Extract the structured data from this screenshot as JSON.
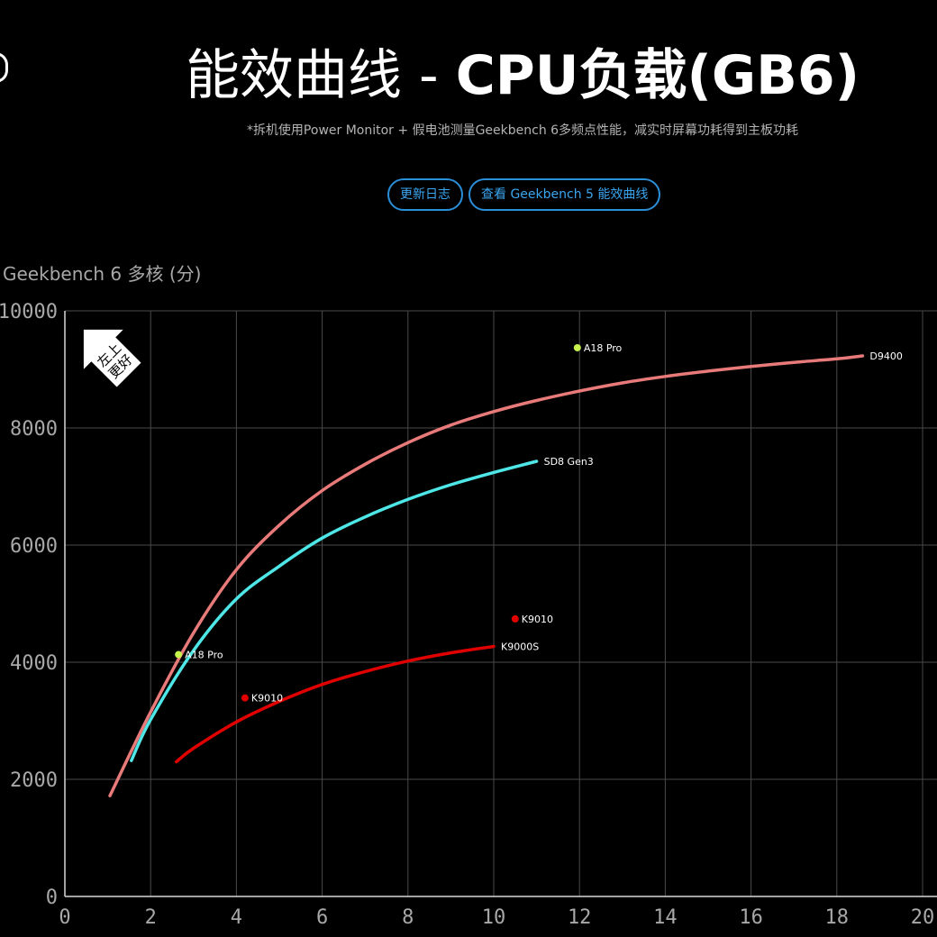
{
  "header": {
    "title_light": "能效曲线 - ",
    "title_bold": "CPU负载(GB6)",
    "subtitle": "*拆机使用Power Monitor + 假电池测量Geekbench 6多频点性能，减实时屏幕功耗得到主板功耗"
  },
  "buttons": {
    "changelog": "更新日志",
    "gb5": "查看 Geekbench 5 能效曲线"
  },
  "badge": {
    "line1": "左上",
    "line2": "更好"
  },
  "chart_data": {
    "type": "line",
    "ylabel": "Geekbench 6 多核 (分)",
    "xlabel": "",
    "xlim": [
      0,
      20
    ],
    "ylim": [
      0,
      10000
    ],
    "x_ticks": [
      "0",
      "2",
      "4",
      "6",
      "8",
      "10",
      "12",
      "14",
      "16",
      "18",
      "20"
    ],
    "y_ticks": [
      "0",
      "2000",
      "4000",
      "6000",
      "8000",
      "10000"
    ],
    "grid": true,
    "series": [
      {
        "name": "D9400",
        "color": "#e87a7a",
        "x": [
          1.05,
          2.0,
          3.0,
          4.0,
          5.0,
          6.0,
          7.0,
          8.0,
          9.0,
          10.0,
          11.0,
          12.0,
          13.0,
          14.0,
          15.0,
          16.0,
          17.0,
          18.0,
          18.6
        ],
        "y": [
          1720,
          3150,
          4500,
          5580,
          6340,
          6930,
          7380,
          7750,
          8050,
          8280,
          8470,
          8630,
          8770,
          8880,
          8970,
          9050,
          9120,
          9180,
          9230
        ]
      },
      {
        "name": "SD8 Gen3",
        "color": "#4ee6e6",
        "x": [
          1.55,
          2.0,
          3.0,
          4.0,
          5.0,
          6.0,
          7.0,
          8.0,
          9.0,
          10.0,
          11.0
        ],
        "y": [
          2320,
          3020,
          4200,
          5080,
          5640,
          6120,
          6480,
          6780,
          7030,
          7240,
          7430
        ]
      },
      {
        "name": "K9000S",
        "color": "#e00000",
        "x": [
          2.6,
          3.0,
          4.0,
          5.0,
          6.0,
          7.0,
          8.0,
          9.0,
          10.0
        ],
        "y": [
          2300,
          2530,
          2980,
          3330,
          3620,
          3840,
          4020,
          4160,
          4270
        ]
      }
    ],
    "points": [
      {
        "name": "A18 Pro",
        "x": 11.95,
        "y": 9370,
        "color": "#c8f24c"
      },
      {
        "name": "A18 Pro",
        "x": 2.65,
        "y": 4130,
        "color": "#c8f24c"
      },
      {
        "name": "K9010",
        "x": 10.5,
        "y": 4740,
        "color": "#e00000"
      },
      {
        "name": "K9010",
        "x": 4.2,
        "y": 3390,
        "color": "#e00000"
      }
    ]
  }
}
